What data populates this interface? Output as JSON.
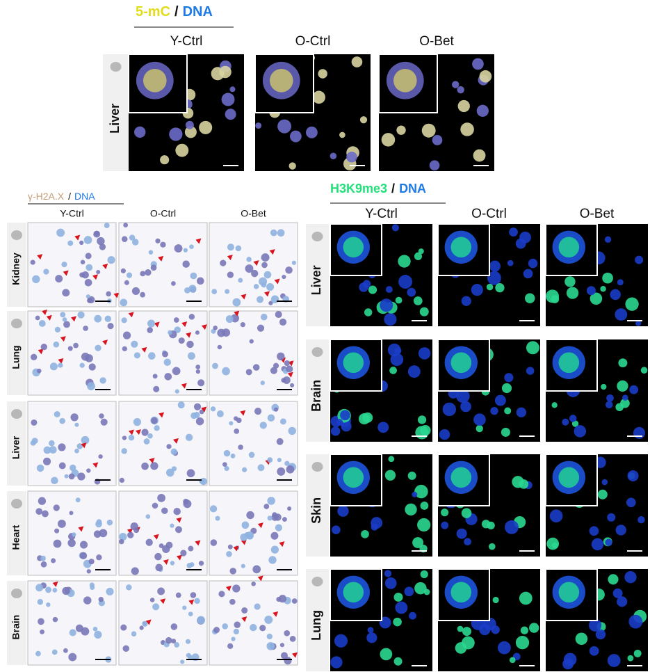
{
  "top_panel": {
    "title": {
      "marker": "5-mC",
      "separator": "/",
      "counterstain": "DNA"
    },
    "columns": [
      "Y-Ctrl",
      "O-Ctrl",
      "O-Bet"
    ],
    "rows": [
      "Liver"
    ]
  },
  "left_panel": {
    "title": {
      "marker": "γ-H2A.X",
      "separator": "/",
      "counterstain": "DNA"
    },
    "columns": [
      "Y-Ctrl",
      "O-Ctrl",
      "O-Bet"
    ],
    "rows": [
      "Kidney",
      "Lung",
      "Liver",
      "Heart",
      "Brain"
    ]
  },
  "right_panel": {
    "title": {
      "marker": "H3K9me3",
      "separator": "/",
      "counterstain": "DNA"
    },
    "columns": [
      "Y-Ctrl",
      "O-Ctrl",
      "O-Bet"
    ],
    "rows": [
      "Liver",
      "Brain",
      "Skin",
      "Lung"
    ]
  }
}
